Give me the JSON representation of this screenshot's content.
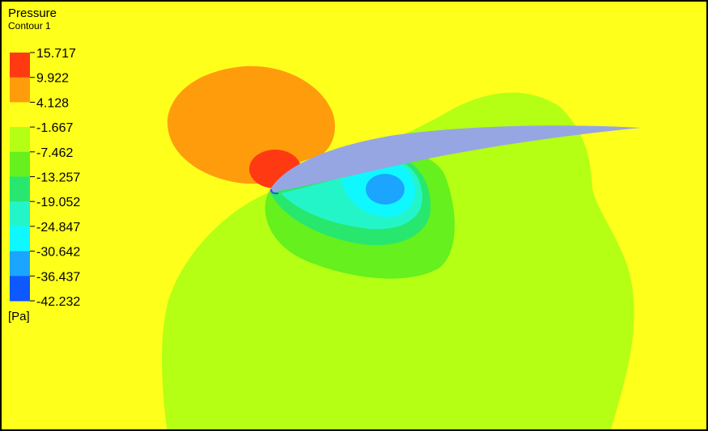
{
  "chart_data": {
    "type": "heatmap",
    "title": "Pressure",
    "subtitle": "Contour 1",
    "unit": "[Pa]",
    "levels": [
      15.717,
      9.922,
      4.128,
      -1.667,
      -7.462,
      -13.257,
      -19.052,
      -24.847,
      -30.642,
      -36.437,
      -42.232
    ],
    "band_colors": [
      "#ff3a12",
      "#ff9c0c",
      "#ffff1c",
      "#b4ff14",
      "#66f01e",
      "#28e76e",
      "#24f5c9",
      "#0ff8ff",
      "#1ba5ff",
      "#0d58ff"
    ],
    "background_color": "#ffff1c",
    "airfoil_color": "#96a6e3",
    "legend_position": "top-left"
  }
}
